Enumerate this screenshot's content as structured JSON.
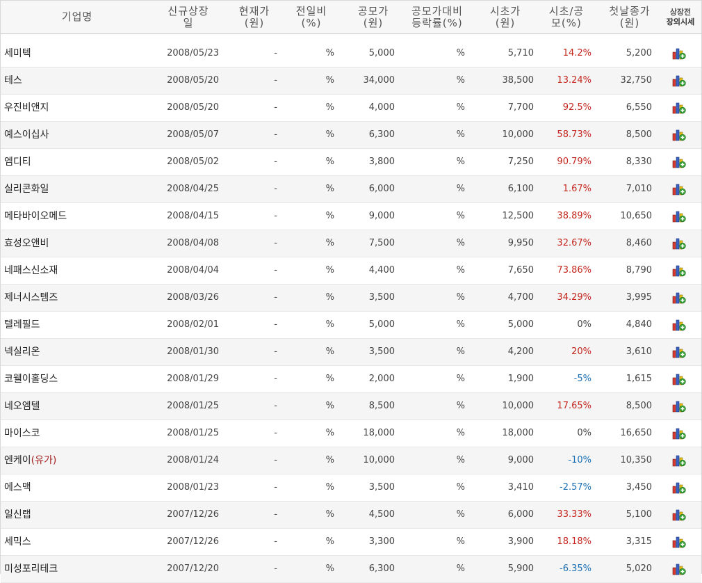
{
  "headers": {
    "name": "기업명",
    "list_date": [
      "신규상장",
      "일"
    ],
    "current": [
      "현재가",
      "(원)"
    ],
    "prev_change": [
      "전일비",
      "(%)"
    ],
    "ipo_price": [
      "공모가",
      "(원)"
    ],
    "ipo_change": [
      "공모가대비",
      "등락률(%)"
    ],
    "open_price": [
      "시초가",
      "(원)"
    ],
    "open_ratio": [
      "시초/공",
      "모(%)"
    ],
    "first_close": [
      "첫날종가",
      "(원)"
    ],
    "otc": [
      "상장전",
      "장외시세"
    ]
  },
  "colors": {
    "up": "#c4261d",
    "down": "#1a6fb3"
  },
  "rows": [
    {
      "name": "세미텍",
      "tag": "",
      "date": "2008/05/23",
      "cur": "-",
      "chg": "%",
      "ipo": "5,000",
      "ipochg": "%",
      "open": "5,710",
      "rate": "14.2%",
      "dir": "up",
      "close": "5,200",
      "icon": "chart-icon"
    },
    {
      "name": "테스",
      "tag": "",
      "date": "2008/05/20",
      "cur": "-",
      "chg": "%",
      "ipo": "34,000",
      "ipochg": "%",
      "open": "38,500",
      "rate": "13.24%",
      "dir": "up",
      "close": "32,750",
      "icon": "chart-icon"
    },
    {
      "name": "우진비앤지",
      "tag": "",
      "date": "2008/05/20",
      "cur": "-",
      "chg": "%",
      "ipo": "4,000",
      "ipochg": "%",
      "open": "7,700",
      "rate": "92.5%",
      "dir": "up",
      "close": "6,550",
      "icon": "chart-icon"
    },
    {
      "name": "예스이십사",
      "tag": "",
      "date": "2008/05/07",
      "cur": "-",
      "chg": "%",
      "ipo": "6,300",
      "ipochg": "%",
      "open": "10,000",
      "rate": "58.73%",
      "dir": "up",
      "close": "8,500",
      "icon": "chart-icon"
    },
    {
      "name": "엠디티",
      "tag": "",
      "date": "2008/05/02",
      "cur": "-",
      "chg": "%",
      "ipo": "3,800",
      "ipochg": "%",
      "open": "7,250",
      "rate": "90.79%",
      "dir": "up",
      "close": "8,330",
      "icon": "chart-icon"
    },
    {
      "name": "실리콘화일",
      "tag": "",
      "date": "2008/04/25",
      "cur": "-",
      "chg": "%",
      "ipo": "6,000",
      "ipochg": "%",
      "open": "6,100",
      "rate": "1.67%",
      "dir": "up",
      "close": "7,010",
      "icon": "chart-icon"
    },
    {
      "name": "메타바이오메드",
      "tag": "",
      "date": "2008/04/15",
      "cur": "-",
      "chg": "%",
      "ipo": "9,000",
      "ipochg": "%",
      "open": "12,500",
      "rate": "38.89%",
      "dir": "up",
      "close": "10,650",
      "icon": "chart-icon"
    },
    {
      "name": "효성오앤비",
      "tag": "",
      "date": "2008/04/08",
      "cur": "-",
      "chg": "%",
      "ipo": "7,500",
      "ipochg": "%",
      "open": "9,950",
      "rate": "32.67%",
      "dir": "up",
      "close": "8,460",
      "icon": "chart-icon"
    },
    {
      "name": "네패스신소재",
      "tag": "",
      "date": "2008/04/04",
      "cur": "-",
      "chg": "%",
      "ipo": "4,400",
      "ipochg": "%",
      "open": "7,650",
      "rate": "73.86%",
      "dir": "up",
      "close": "8,790",
      "icon": "chart-icon"
    },
    {
      "name": "제너시스템즈",
      "tag": "",
      "date": "2008/03/26",
      "cur": "-",
      "chg": "%",
      "ipo": "3,500",
      "ipochg": "%",
      "open": "4,700",
      "rate": "34.29%",
      "dir": "up",
      "close": "3,995",
      "icon": "chart-icon"
    },
    {
      "name": "텔레필드",
      "tag": "",
      "date": "2008/02/01",
      "cur": "-",
      "chg": "%",
      "ipo": "5,000",
      "ipochg": "%",
      "open": "5,000",
      "rate": "0%",
      "dir": "flat",
      "close": "4,840",
      "icon": "chart-icon"
    },
    {
      "name": "넥실리온",
      "tag": "",
      "date": "2008/01/30",
      "cur": "-",
      "chg": "%",
      "ipo": "3,500",
      "ipochg": "%",
      "open": "4,200",
      "rate": "20%",
      "dir": "up",
      "close": "3,610",
      "icon": "chart-icon"
    },
    {
      "name": "코웰이홀딩스",
      "tag": "",
      "date": "2008/01/29",
      "cur": "-",
      "chg": "%",
      "ipo": "2,000",
      "ipochg": "%",
      "open": "1,900",
      "rate": "-5%",
      "dir": "down",
      "close": "1,615",
      "icon": "chart-icon"
    },
    {
      "name": "네오엠텔",
      "tag": "",
      "date": "2008/01/25",
      "cur": "-",
      "chg": "%",
      "ipo": "8,500",
      "ipochg": "%",
      "open": "10,000",
      "rate": "17.65%",
      "dir": "up",
      "close": "8,500",
      "icon": "chart-icon"
    },
    {
      "name": "마이스코",
      "tag": "",
      "date": "2008/01/25",
      "cur": "-",
      "chg": "%",
      "ipo": "18,000",
      "ipochg": "%",
      "open": "18,000",
      "rate": "0%",
      "dir": "flat",
      "close": "16,650",
      "icon": "chart-icon"
    },
    {
      "name": "엔케이",
      "tag": "(유가)",
      "date": "2008/01/24",
      "cur": "-",
      "chg": "%",
      "ipo": "10,000",
      "ipochg": "%",
      "open": "9,000",
      "rate": "-10%",
      "dir": "down",
      "close": "10,350",
      "icon": "chart-icon"
    },
    {
      "name": "에스맥",
      "tag": "",
      "date": "2008/01/23",
      "cur": "-",
      "chg": "%",
      "ipo": "3,500",
      "ipochg": "%",
      "open": "3,410",
      "rate": "-2.57%",
      "dir": "down",
      "close": "3,450",
      "icon": "chart-icon"
    },
    {
      "name": "일신랩",
      "tag": "",
      "date": "2007/12/26",
      "cur": "-",
      "chg": "%",
      "ipo": "4,500",
      "ipochg": "%",
      "open": "6,000",
      "rate": "33.33%",
      "dir": "up",
      "close": "5,100",
      "icon": "chart-icon"
    },
    {
      "name": "세믹스",
      "tag": "",
      "date": "2007/12/26",
      "cur": "-",
      "chg": "%",
      "ipo": "3,300",
      "ipochg": "%",
      "open": "3,900",
      "rate": "18.18%",
      "dir": "up",
      "close": "3,315",
      "icon": "chart-icon"
    },
    {
      "name": "미성포리테크",
      "tag": "",
      "date": "2007/12/20",
      "cur": "-",
      "chg": "%",
      "ipo": "6,300",
      "ipochg": "%",
      "open": "5,900",
      "rate": "-6.35%",
      "dir": "down",
      "close": "5,020",
      "icon": "chart-icon"
    }
  ]
}
